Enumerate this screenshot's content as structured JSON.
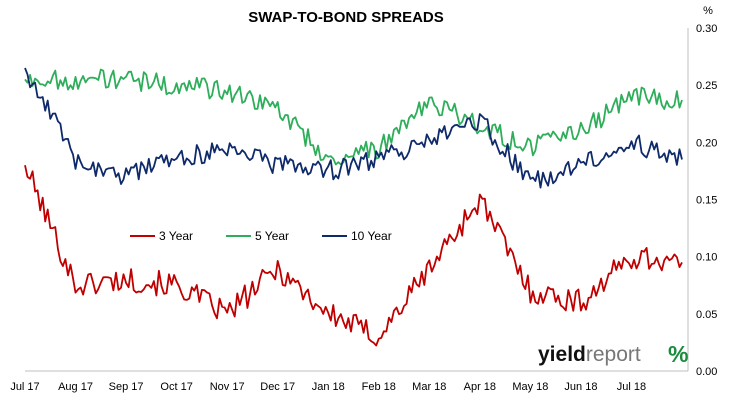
{
  "chart_data": {
    "type": "line",
    "title": "SWAP-TO-BOND SPREADS",
    "ylabel": "%",
    "ylim": [
      0,
      0.3
    ],
    "yticks": [
      "0.00",
      "0.05",
      "0.10",
      "0.15",
      "0.20",
      "0.25",
      "0.30"
    ],
    "y_axis_side": "right",
    "grid": false,
    "legend_position": "middle-left",
    "x": [
      "Jul 17",
      "Aug 17",
      "Sep 17",
      "Oct 17",
      "Nov 17",
      "Dec 17",
      "Jan 18",
      "Feb 18",
      "Mar 18",
      "Apr 18",
      "May 18",
      "Jun 18",
      "Jul 18"
    ],
    "series": [
      {
        "name": "3 Year",
        "color": "#c00000",
        "values": [
          0.18,
          0.075,
          0.08,
          0.075,
          0.05,
          0.09,
          0.05,
          0.03,
          0.09,
          0.15,
          0.07,
          0.06,
          0.1
        ],
        "end": 0.095
      },
      {
        "name": "5 Year",
        "color": "#2eae5a",
        "values": [
          0.255,
          0.255,
          0.255,
          0.25,
          0.245,
          0.23,
          0.185,
          0.195,
          0.235,
          0.215,
          0.195,
          0.21,
          0.24
        ],
        "end": 0.237
      },
      {
        "name": "10 Year",
        "color": "#0f2a6b",
        "values": [
          0.265,
          0.185,
          0.17,
          0.185,
          0.195,
          0.18,
          0.175,
          0.185,
          0.2,
          0.22,
          0.165,
          0.18,
          0.2
        ],
        "end": 0.185
      }
    ]
  },
  "logo": {
    "part1": "yield",
    "part2": "report",
    "symbol": "%"
  }
}
